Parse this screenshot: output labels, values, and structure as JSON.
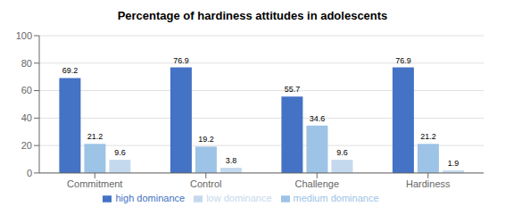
{
  "chart_data": {
    "type": "bar",
    "title": "Percentage of hardiness attitudes in adolescents",
    "categories": [
      "Commitment",
      "Control",
      "Challenge",
      "Hardiness"
    ],
    "series": [
      {
        "name": "high dominance",
        "color": "#4472c4",
        "values": [
          69.2,
          76.9,
          55.7,
          76.9
        ]
      },
      {
        "name": "medium dominance",
        "color": "#9dc3e6",
        "values": [
          21.2,
          19.2,
          34.6,
          21.2
        ]
      },
      {
        "name": "low dominance",
        "color": "#c5d9ee",
        "values": [
          9.6,
          3.8,
          9.6,
          1.9
        ]
      }
    ],
    "ylim": [
      0,
      100
    ],
    "yticks": [
      0,
      20,
      40,
      60,
      80,
      100
    ],
    "grid": true,
    "legend": "bottom",
    "data_labels": true
  }
}
